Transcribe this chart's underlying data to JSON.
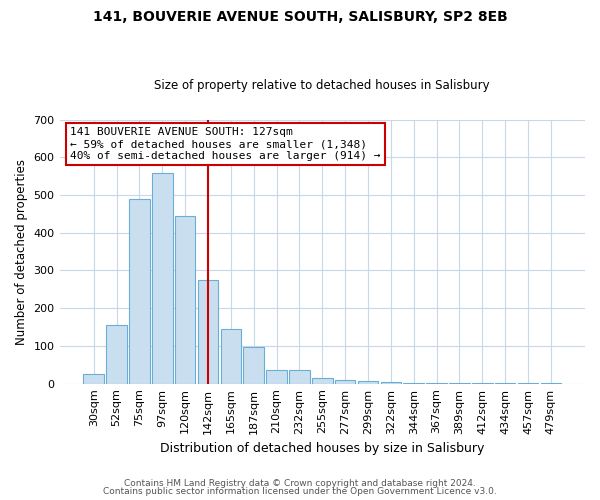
{
  "title": "141, BOUVERIE AVENUE SOUTH, SALISBURY, SP2 8EB",
  "subtitle": "Size of property relative to detached houses in Salisbury",
  "xlabel": "Distribution of detached houses by size in Salisbury",
  "ylabel": "Number of detached properties",
  "bar_labels": [
    "30sqm",
    "52sqm",
    "75sqm",
    "97sqm",
    "120sqm",
    "142sqm",
    "165sqm",
    "187sqm",
    "210sqm",
    "232sqm",
    "255sqm",
    "277sqm",
    "299sqm",
    "322sqm",
    "344sqm",
    "367sqm",
    "389sqm",
    "412sqm",
    "434sqm",
    "457sqm",
    "479sqm"
  ],
  "bar_values": [
    25,
    155,
    490,
    558,
    445,
    275,
    145,
    98,
    37,
    35,
    14,
    10,
    7,
    5,
    3,
    2,
    2,
    1,
    1,
    1,
    3
  ],
  "bar_color": "#c9dff0",
  "bar_edge_color": "#6aaed6",
  "vline_x": 5.0,
  "vline_color": "#cc0000",
  "annotation_text": "141 BOUVERIE AVENUE SOUTH: 127sqm\n← 59% of detached houses are smaller (1,348)\n40% of semi-detached houses are larger (914) →",
  "annotation_box_color": "#ffffff",
  "annotation_box_edge": "#cc0000",
  "ylim": [
    0,
    700
  ],
  "yticks": [
    0,
    100,
    200,
    300,
    400,
    500,
    600,
    700
  ],
  "footer_line1": "Contains HM Land Registry data © Crown copyright and database right 2024.",
  "footer_line2": "Contains public sector information licensed under the Open Government Licence v3.0.",
  "background_color": "#ffffff",
  "grid_color": "#c8d8e8"
}
